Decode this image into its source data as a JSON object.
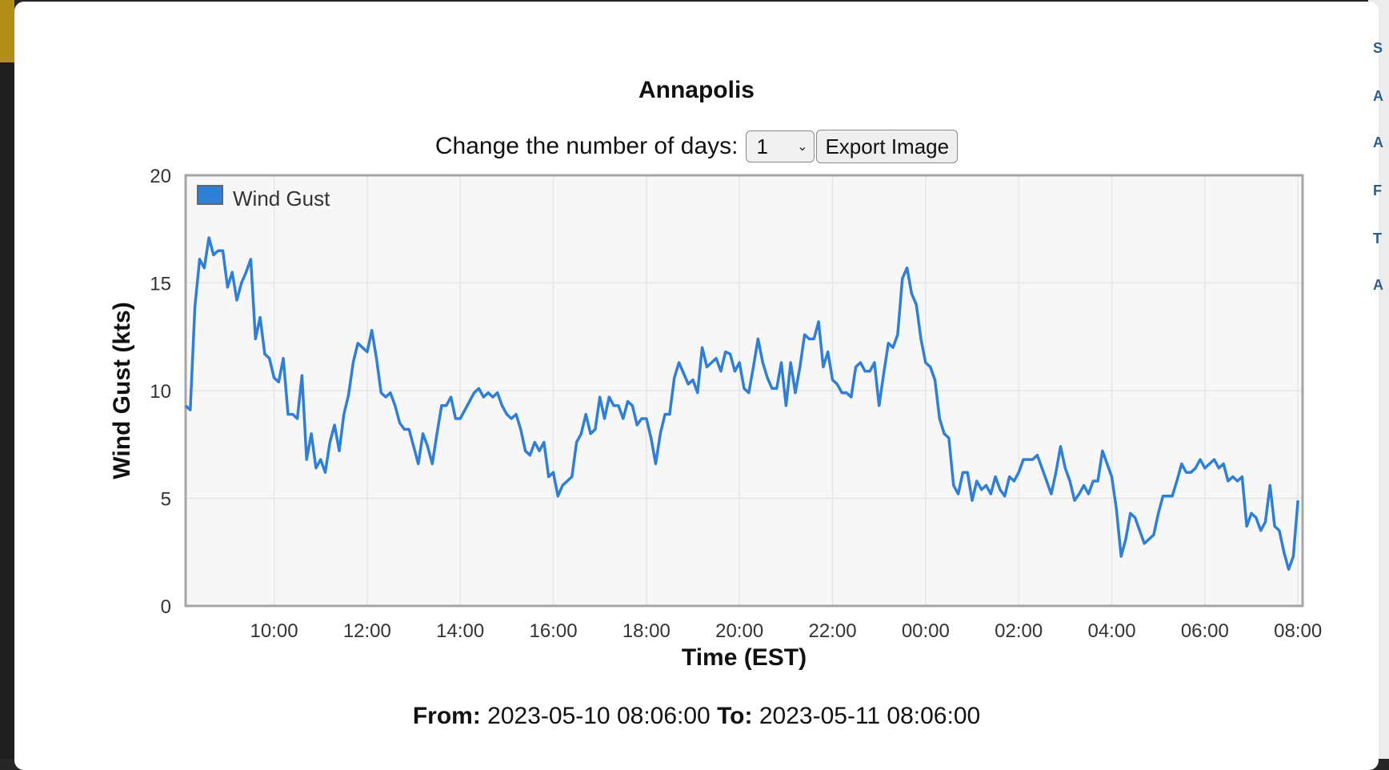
{
  "title": "Annapolis",
  "controls": {
    "days_label": "Change the number of days:",
    "days_selected": "1",
    "export_label": "Export Image"
  },
  "range": {
    "from_label": "From:",
    "from_value": "2023-05-10 08:06:00",
    "to_label": "To:",
    "to_value": "2023-05-11 08:06:00"
  },
  "colors": {
    "series": "#2f7fd6",
    "plot_bg": "#f7f7f7",
    "grid": "#e6e6e6"
  },
  "chart_data": {
    "type": "line",
    "xlabel": "Time (EST)",
    "ylabel": "Wind Gust (kts)",
    "ylim": [
      0,
      20
    ],
    "yticks": [
      0,
      5,
      10,
      15,
      20
    ],
    "xlim_hours": [
      8.1,
      32.1
    ],
    "xticks": [
      {
        "label": "10:00",
        "h": 10
      },
      {
        "label": "12:00",
        "h": 12
      },
      {
        "label": "14:00",
        "h": 14
      },
      {
        "label": "16:00",
        "h": 16
      },
      {
        "label": "18:00",
        "h": 18
      },
      {
        "label": "20:00",
        "h": 20
      },
      {
        "label": "22:00",
        "h": 22
      },
      {
        "label": "00:00",
        "h": 24
      },
      {
        "label": "02:00",
        "h": 26
      },
      {
        "label": "04:00",
        "h": 28
      },
      {
        "label": "06:00",
        "h": 30
      },
      {
        "label": "08:00",
        "h": 32
      }
    ],
    "grid": true,
    "legend": "top-left",
    "series": [
      {
        "name": "Wind Gust",
        "points": [
          [
            8.1,
            9.3
          ],
          [
            8.2,
            9.1
          ],
          [
            8.3,
            13.9
          ],
          [
            8.4,
            16.1
          ],
          [
            8.5,
            15.7
          ],
          [
            8.6,
            17.1
          ],
          [
            8.7,
            16.3
          ],
          [
            8.8,
            16.5
          ],
          [
            8.9,
            16.5
          ],
          [
            9.0,
            14.8
          ],
          [
            9.1,
            15.5
          ],
          [
            9.2,
            14.2
          ],
          [
            9.3,
            15.0
          ],
          [
            9.4,
            15.5
          ],
          [
            9.5,
            16.1
          ],
          [
            9.6,
            12.4
          ],
          [
            9.7,
            13.4
          ],
          [
            9.8,
            11.7
          ],
          [
            9.9,
            11.5
          ],
          [
            10.0,
            10.6
          ],
          [
            10.1,
            10.4
          ],
          [
            10.2,
            11.5
          ],
          [
            10.3,
            8.9
          ],
          [
            10.4,
            8.9
          ],
          [
            10.5,
            8.7
          ],
          [
            10.6,
            10.7
          ],
          [
            10.7,
            6.8
          ],
          [
            10.8,
            8.0
          ],
          [
            10.9,
            6.4
          ],
          [
            11.0,
            6.8
          ],
          [
            11.1,
            6.2
          ],
          [
            11.2,
            7.6
          ],
          [
            11.3,
            8.4
          ],
          [
            11.4,
            7.2
          ],
          [
            11.5,
            8.9
          ],
          [
            11.6,
            9.8
          ],
          [
            11.7,
            11.3
          ],
          [
            11.8,
            12.2
          ],
          [
            11.9,
            12.0
          ],
          [
            12.0,
            11.8
          ],
          [
            12.1,
            12.8
          ],
          [
            12.2,
            11.5
          ],
          [
            12.3,
            9.9
          ],
          [
            12.4,
            9.7
          ],
          [
            12.5,
            9.9
          ],
          [
            12.6,
            9.3
          ],
          [
            12.7,
            8.5
          ],
          [
            12.8,
            8.2
          ],
          [
            12.9,
            8.2
          ],
          [
            13.0,
            7.4
          ],
          [
            13.1,
            6.6
          ],
          [
            13.2,
            8.0
          ],
          [
            13.3,
            7.4
          ],
          [
            13.4,
            6.6
          ],
          [
            13.5,
            8.0
          ],
          [
            13.6,
            9.3
          ],
          [
            13.7,
            9.3
          ],
          [
            13.8,
            9.7
          ],
          [
            13.9,
            8.7
          ],
          [
            14.0,
            8.7
          ],
          [
            14.1,
            9.1
          ],
          [
            14.2,
            9.5
          ],
          [
            14.3,
            9.9
          ],
          [
            14.4,
            10.1
          ],
          [
            14.5,
            9.7
          ],
          [
            14.6,
            9.9
          ],
          [
            14.7,
            9.7
          ],
          [
            14.8,
            9.9
          ],
          [
            14.9,
            9.3
          ],
          [
            15.0,
            8.9
          ],
          [
            15.1,
            8.7
          ],
          [
            15.2,
            8.9
          ],
          [
            15.3,
            8.2
          ],
          [
            15.4,
            7.2
          ],
          [
            15.5,
            7.0
          ],
          [
            15.6,
            7.6
          ],
          [
            15.7,
            7.2
          ],
          [
            15.8,
            7.6
          ],
          [
            15.9,
            6.0
          ],
          [
            16.0,
            6.2
          ],
          [
            16.1,
            5.1
          ],
          [
            16.2,
            5.6
          ],
          [
            16.3,
            5.8
          ],
          [
            16.4,
            6.0
          ],
          [
            16.5,
            7.6
          ],
          [
            16.6,
            8.0
          ],
          [
            16.7,
            8.9
          ],
          [
            16.8,
            8.0
          ],
          [
            16.9,
            8.2
          ],
          [
            17.0,
            9.7
          ],
          [
            17.1,
            8.7
          ],
          [
            17.2,
            9.7
          ],
          [
            17.3,
            9.3
          ],
          [
            17.4,
            9.3
          ],
          [
            17.5,
            8.7
          ],
          [
            17.6,
            9.5
          ],
          [
            17.7,
            9.3
          ],
          [
            17.8,
            8.4
          ],
          [
            17.9,
            8.7
          ],
          [
            18.0,
            8.7
          ],
          [
            18.1,
            7.8
          ],
          [
            18.2,
            6.6
          ],
          [
            18.3,
            8.0
          ],
          [
            18.4,
            8.9
          ],
          [
            18.5,
            8.9
          ],
          [
            18.6,
            10.6
          ],
          [
            18.7,
            11.3
          ],
          [
            18.8,
            10.8
          ],
          [
            18.9,
            10.3
          ],
          [
            19.0,
            10.5
          ],
          [
            19.1,
            9.9
          ],
          [
            19.2,
            12.0
          ],
          [
            19.3,
            11.1
          ],
          [
            19.4,
            11.3
          ],
          [
            19.5,
            11.5
          ],
          [
            19.6,
            10.9
          ],
          [
            19.7,
            11.8
          ],
          [
            19.8,
            11.7
          ],
          [
            19.9,
            10.9
          ],
          [
            20.0,
            11.3
          ],
          [
            20.1,
            10.1
          ],
          [
            20.2,
            9.9
          ],
          [
            20.3,
            11.1
          ],
          [
            20.4,
            12.4
          ],
          [
            20.5,
            11.3
          ],
          [
            20.6,
            10.6
          ],
          [
            20.7,
            10.1
          ],
          [
            20.8,
            10.1
          ],
          [
            20.9,
            11.3
          ],
          [
            21.0,
            9.3
          ],
          [
            21.1,
            11.3
          ],
          [
            21.2,
            9.9
          ],
          [
            21.3,
            11.1
          ],
          [
            21.4,
            12.6
          ],
          [
            21.5,
            12.4
          ],
          [
            21.6,
            12.4
          ],
          [
            21.7,
            13.2
          ],
          [
            21.8,
            11.1
          ],
          [
            21.9,
            11.8
          ],
          [
            22.0,
            10.5
          ],
          [
            22.1,
            10.3
          ],
          [
            22.2,
            9.9
          ],
          [
            22.3,
            9.9
          ],
          [
            22.4,
            9.7
          ],
          [
            22.5,
            11.1
          ],
          [
            22.6,
            11.3
          ],
          [
            22.7,
            10.9
          ],
          [
            22.8,
            10.9
          ],
          [
            22.9,
            11.3
          ],
          [
            23.0,
            9.3
          ],
          [
            23.1,
            10.8
          ],
          [
            23.2,
            12.2
          ],
          [
            23.3,
            12.0
          ],
          [
            23.4,
            12.6
          ],
          [
            23.5,
            15.2
          ],
          [
            23.6,
            15.7
          ],
          [
            23.7,
            14.5
          ],
          [
            23.8,
            14.0
          ],
          [
            23.9,
            12.4
          ],
          [
            24.0,
            11.3
          ],
          [
            24.1,
            11.1
          ],
          [
            24.2,
            10.5
          ],
          [
            24.3,
            8.7
          ],
          [
            24.4,
            8.0
          ],
          [
            24.5,
            7.8
          ],
          [
            24.6,
            5.6
          ],
          [
            24.7,
            5.2
          ],
          [
            24.8,
            6.2
          ],
          [
            24.9,
            6.2
          ],
          [
            25.0,
            4.9
          ],
          [
            25.1,
            5.8
          ],
          [
            25.2,
            5.4
          ],
          [
            25.3,
            5.6
          ],
          [
            25.4,
            5.2
          ],
          [
            25.5,
            6.0
          ],
          [
            25.6,
            5.4
          ],
          [
            25.7,
            5.1
          ],
          [
            25.8,
            6.0
          ],
          [
            25.9,
            5.8
          ],
          [
            26.0,
            6.2
          ],
          [
            26.1,
            6.8
          ],
          [
            26.2,
            6.8
          ],
          [
            26.3,
            6.8
          ],
          [
            26.4,
            7.0
          ],
          [
            26.5,
            6.4
          ],
          [
            26.6,
            5.8
          ],
          [
            26.7,
            5.2
          ],
          [
            26.8,
            6.2
          ],
          [
            26.9,
            7.4
          ],
          [
            27.0,
            6.4
          ],
          [
            27.1,
            5.8
          ],
          [
            27.2,
            4.9
          ],
          [
            27.3,
            5.2
          ],
          [
            27.4,
            5.6
          ],
          [
            27.5,
            5.2
          ],
          [
            27.6,
            5.8
          ],
          [
            27.7,
            5.8
          ],
          [
            27.8,
            7.2
          ],
          [
            27.9,
            6.6
          ],
          [
            28.0,
            6.0
          ],
          [
            28.1,
            4.5
          ],
          [
            28.2,
            2.3
          ],
          [
            28.3,
            3.1
          ],
          [
            28.4,
            4.3
          ],
          [
            28.5,
            4.1
          ],
          [
            28.6,
            3.5
          ],
          [
            28.7,
            2.9
          ],
          [
            28.8,
            3.1
          ],
          [
            28.9,
            3.3
          ],
          [
            29.0,
            4.3
          ],
          [
            29.1,
            5.1
          ],
          [
            29.2,
            5.1
          ],
          [
            29.3,
            5.1
          ],
          [
            29.4,
            5.8
          ],
          [
            29.5,
            6.6
          ],
          [
            29.6,
            6.2
          ],
          [
            29.7,
            6.2
          ],
          [
            29.8,
            6.4
          ],
          [
            29.9,
            6.8
          ],
          [
            30.0,
            6.4
          ],
          [
            30.1,
            6.6
          ],
          [
            30.2,
            6.8
          ],
          [
            30.3,
            6.4
          ],
          [
            30.4,
            6.6
          ],
          [
            30.5,
            5.8
          ],
          [
            30.6,
            6.0
          ],
          [
            30.7,
            5.8
          ],
          [
            30.8,
            6.0
          ],
          [
            30.9,
            3.7
          ],
          [
            31.0,
            4.3
          ],
          [
            31.1,
            4.1
          ],
          [
            31.2,
            3.5
          ],
          [
            31.3,
            3.9
          ],
          [
            31.4,
            5.6
          ],
          [
            31.5,
            3.7
          ],
          [
            31.6,
            3.5
          ],
          [
            31.7,
            2.5
          ],
          [
            31.8,
            1.7
          ],
          [
            31.9,
            2.3
          ],
          [
            32.0,
            4.9
          ]
        ]
      }
    ]
  }
}
